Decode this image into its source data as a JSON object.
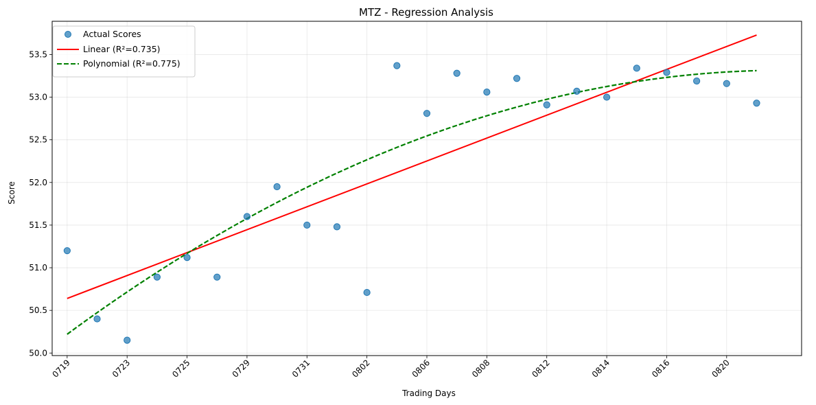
{
  "chart_data": {
    "type": "scatter",
    "title": "MTZ - Regression Analysis",
    "xlabel": "Trading Days",
    "ylabel": "Score",
    "x_tick_labels": [
      "0719",
      "0723",
      "0725",
      "0729",
      "0731",
      "0802",
      "0806",
      "0808",
      "0812",
      "0814",
      "0816",
      "0820"
    ],
    "y_ticks": [
      50.0,
      50.5,
      51.0,
      51.5,
      52.0,
      52.5,
      53.0,
      53.5
    ],
    "y_tick_labels": [
      "50.0",
      "50.5",
      "51.0",
      "51.5",
      "52.0",
      "52.5",
      "53.0",
      "53.5"
    ],
    "xlim": [
      -0.5,
      24.5
    ],
    "ylim": [
      49.97,
      53.89
    ],
    "grid": true,
    "legend_position": "top-left",
    "x_index": [
      0,
      1,
      2,
      3,
      4,
      5,
      6,
      7,
      8,
      9,
      10,
      11,
      12,
      13,
      14,
      15,
      16,
      17,
      18,
      19,
      20,
      21,
      22,
      23
    ],
    "series": [
      {
        "name": "Actual Scores",
        "kind": "scatter",
        "color": "#1f77b4",
        "values": [
          51.2,
          50.4,
          50.15,
          50.89,
          51.12,
          50.89,
          51.6,
          51.95,
          51.5,
          51.48,
          50.71,
          53.37,
          52.81,
          53.28,
          53.06,
          53.22,
          52.91,
          53.07,
          53.0,
          53.34,
          53.29,
          53.19,
          53.16,
          52.93
        ]
      },
      {
        "name": "Linear (R²=0.735)",
        "kind": "line",
        "color": "#ff0000",
        "style": "solid",
        "intercept": 50.64,
        "slope": 0.1343
      },
      {
        "name": "Polynomial (R²=0.775)",
        "kind": "line",
        "color": "#008000",
        "style": "dashed",
        "coefficients": [
          50.22,
          0.2586,
          -0.0054
        ]
      }
    ]
  }
}
